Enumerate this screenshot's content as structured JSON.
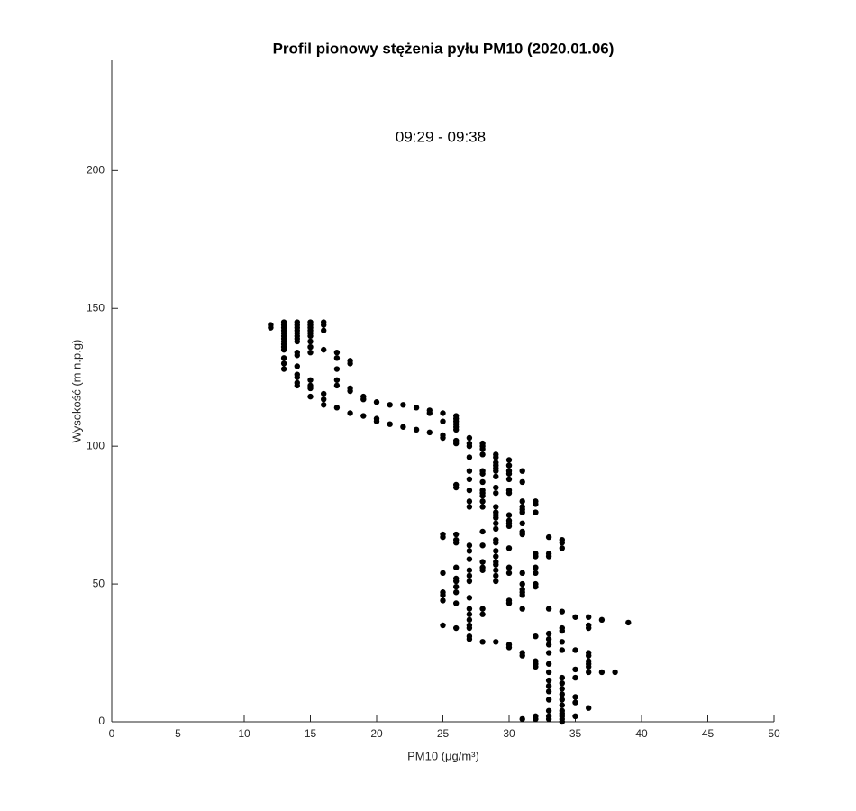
{
  "chart_data": {
    "type": "scatter",
    "title": "Profil pionowy stężenia pyłu PM10 (2020.01.06)",
    "annotation": "09:29 - 09:38",
    "xlabel": "PM10 (μg/m³)",
    "ylabel": "Wysokość (m n.p.g)",
    "color": "#000000",
    "xlim": [
      0,
      50
    ],
    "xticks": [
      0,
      5,
      10,
      15,
      20,
      25,
      30,
      35,
      40,
      45,
      50
    ],
    "ylim": [
      0,
      240
    ],
    "yticks": [
      0,
      50,
      100,
      150,
      200
    ],
    "grid": false,
    "x": [
      12,
      12,
      13,
      13,
      13,
      13,
      13,
      13,
      13,
      13,
      13,
      13,
      13,
      13,
      13,
      13,
      14,
      14,
      14,
      14,
      14,
      14,
      14,
      14,
      14,
      14,
      14,
      14,
      14,
      14,
      14,
      15,
      15,
      15,
      15,
      15,
      15,
      15,
      15,
      15,
      15,
      15,
      15,
      15,
      16,
      16,
      16,
      16,
      16,
      16,
      16,
      17,
      17,
      17,
      17,
      17,
      17,
      18,
      18,
      18,
      18,
      18,
      19,
      19,
      19,
      20,
      20,
      20,
      21,
      21,
      22,
      22,
      23,
      23,
      24,
      24,
      24,
      25,
      25,
      25,
      25,
      25,
      25,
      25,
      25,
      25,
      25,
      25,
      26,
      26,
      26,
      26,
      26,
      26,
      26,
      26,
      26,
      26,
      26,
      26,
      26,
      26,
      26,
      26,
      26,
      26,
      26,
      26,
      27,
      27,
      27,
      27,
      27,
      27,
      27,
      27,
      27,
      27,
      27,
      27,
      27,
      27,
      27,
      27,
      27,
      27,
      27,
      27,
      27,
      27,
      27,
      28,
      28,
      28,
      28,
      28,
      28,
      28,
      28,
      28,
      28,
      28,
      28,
      28,
      28,
      28,
      28,
      28,
      28,
      28,
      28,
      29,
      29,
      29,
      29,
      29,
      29,
      29,
      29,
      29,
      29,
      29,
      29,
      29,
      29,
      29,
      29,
      29,
      29,
      29,
      29,
      29,
      29,
      29,
      29,
      29,
      30,
      30,
      30,
      30,
      30,
      30,
      30,
      30,
      30,
      30,
      30,
      30,
      30,
      30,
      30,
      30,
      30,
      30,
      31,
      31,
      31,
      31,
      31,
      31,
      31,
      31,
      31,
      31,
      31,
      31,
      31,
      31,
      31,
      31,
      31,
      31,
      32,
      32,
      32,
      32,
      32,
      32,
      32,
      32,
      32,
      32,
      32,
      32,
      32,
      32,
      32,
      33,
      33,
      33,
      33,
      33,
      33,
      33,
      33,
      33,
      33,
      33,
      33,
      33,
      33,
      33,
      33,
      33,
      34,
      34,
      34,
      34,
      34,
      34,
      34,
      34,
      34,
      34,
      34,
      34,
      34,
      34,
      34,
      34,
      34,
      34,
      34,
      35,
      35,
      35,
      35,
      35,
      35,
      35,
      36,
      36,
      36,
      36,
      36,
      36,
      36,
      36,
      36,
      36,
      37,
      37,
      38,
      39
    ],
    "values": [
      144,
      143,
      145,
      144,
      143,
      142,
      141,
      140,
      139,
      138,
      137,
      136,
      135,
      132,
      130,
      128,
      145,
      144,
      143,
      142,
      141,
      140,
      139,
      138,
      134,
      133,
      129,
      126,
      125,
      123,
      122,
      145,
      144,
      143,
      142,
      141,
      140,
      138,
      136,
      134,
      124,
      122,
      121,
      118,
      145,
      144,
      142,
      135,
      119,
      117,
      115,
      134,
      132,
      128,
      124,
      122,
      114,
      131,
      130,
      121,
      120,
      112,
      118,
      117,
      111,
      116,
      110,
      109,
      115,
      108,
      115,
      107,
      114,
      106,
      113,
      112,
      105,
      112,
      109,
      104,
      103,
      68,
      67,
      54,
      47,
      46,
      44,
      35,
      111,
      110,
      109,
      108,
      107,
      106,
      102,
      101,
      86,
      85,
      68,
      66,
      65,
      56,
      52,
      51,
      49,
      47,
      43,
      34,
      103,
      101,
      100,
      96,
      91,
      88,
      84,
      80,
      78,
      64,
      62,
      59,
      55,
      53,
      51,
      45,
      41,
      39,
      37,
      35,
      34,
      31,
      30,
      101,
      100,
      99,
      97,
      91,
      90,
      87,
      84,
      83,
      82,
      80,
      78,
      69,
      64,
      58,
      56,
      55,
      41,
      39,
      29,
      97,
      96,
      94,
      93,
      92,
      91,
      89,
      85,
      83,
      78,
      76,
      75,
      74,
      72,
      70,
      66,
      65,
      62,
      60,
      58,
      57,
      55,
      53,
      51,
      29,
      95,
      93,
      91,
      90,
      88,
      84,
      83,
      75,
      73,
      72,
      71,
      63,
      56,
      54,
      44,
      43,
      28,
      27,
      91,
      87,
      80,
      78,
      77,
      76,
      72,
      69,
      68,
      54,
      50,
      48,
      47,
      46,
      41,
      25,
      24,
      1,
      80,
      79,
      76,
      61,
      60,
      56,
      54,
      50,
      49,
      31,
      22,
      21,
      20,
      2,
      1,
      67,
      61,
      60,
      41,
      32,
      30,
      28,
      25,
      21,
      18,
      15,
      13,
      11,
      8,
      4,
      2,
      1,
      66,
      65,
      63,
      40,
      34,
      33,
      29,
      26,
      16,
      14,
      12,
      10,
      8,
      6,
      4,
      3,
      2,
      1,
      0,
      38,
      26,
      19,
      16,
      9,
      7,
      2,
      38,
      35,
      34,
      25,
      24,
      22,
      21,
      20,
      18,
      5,
      37,
      18,
      18,
      36
    ]
  }
}
